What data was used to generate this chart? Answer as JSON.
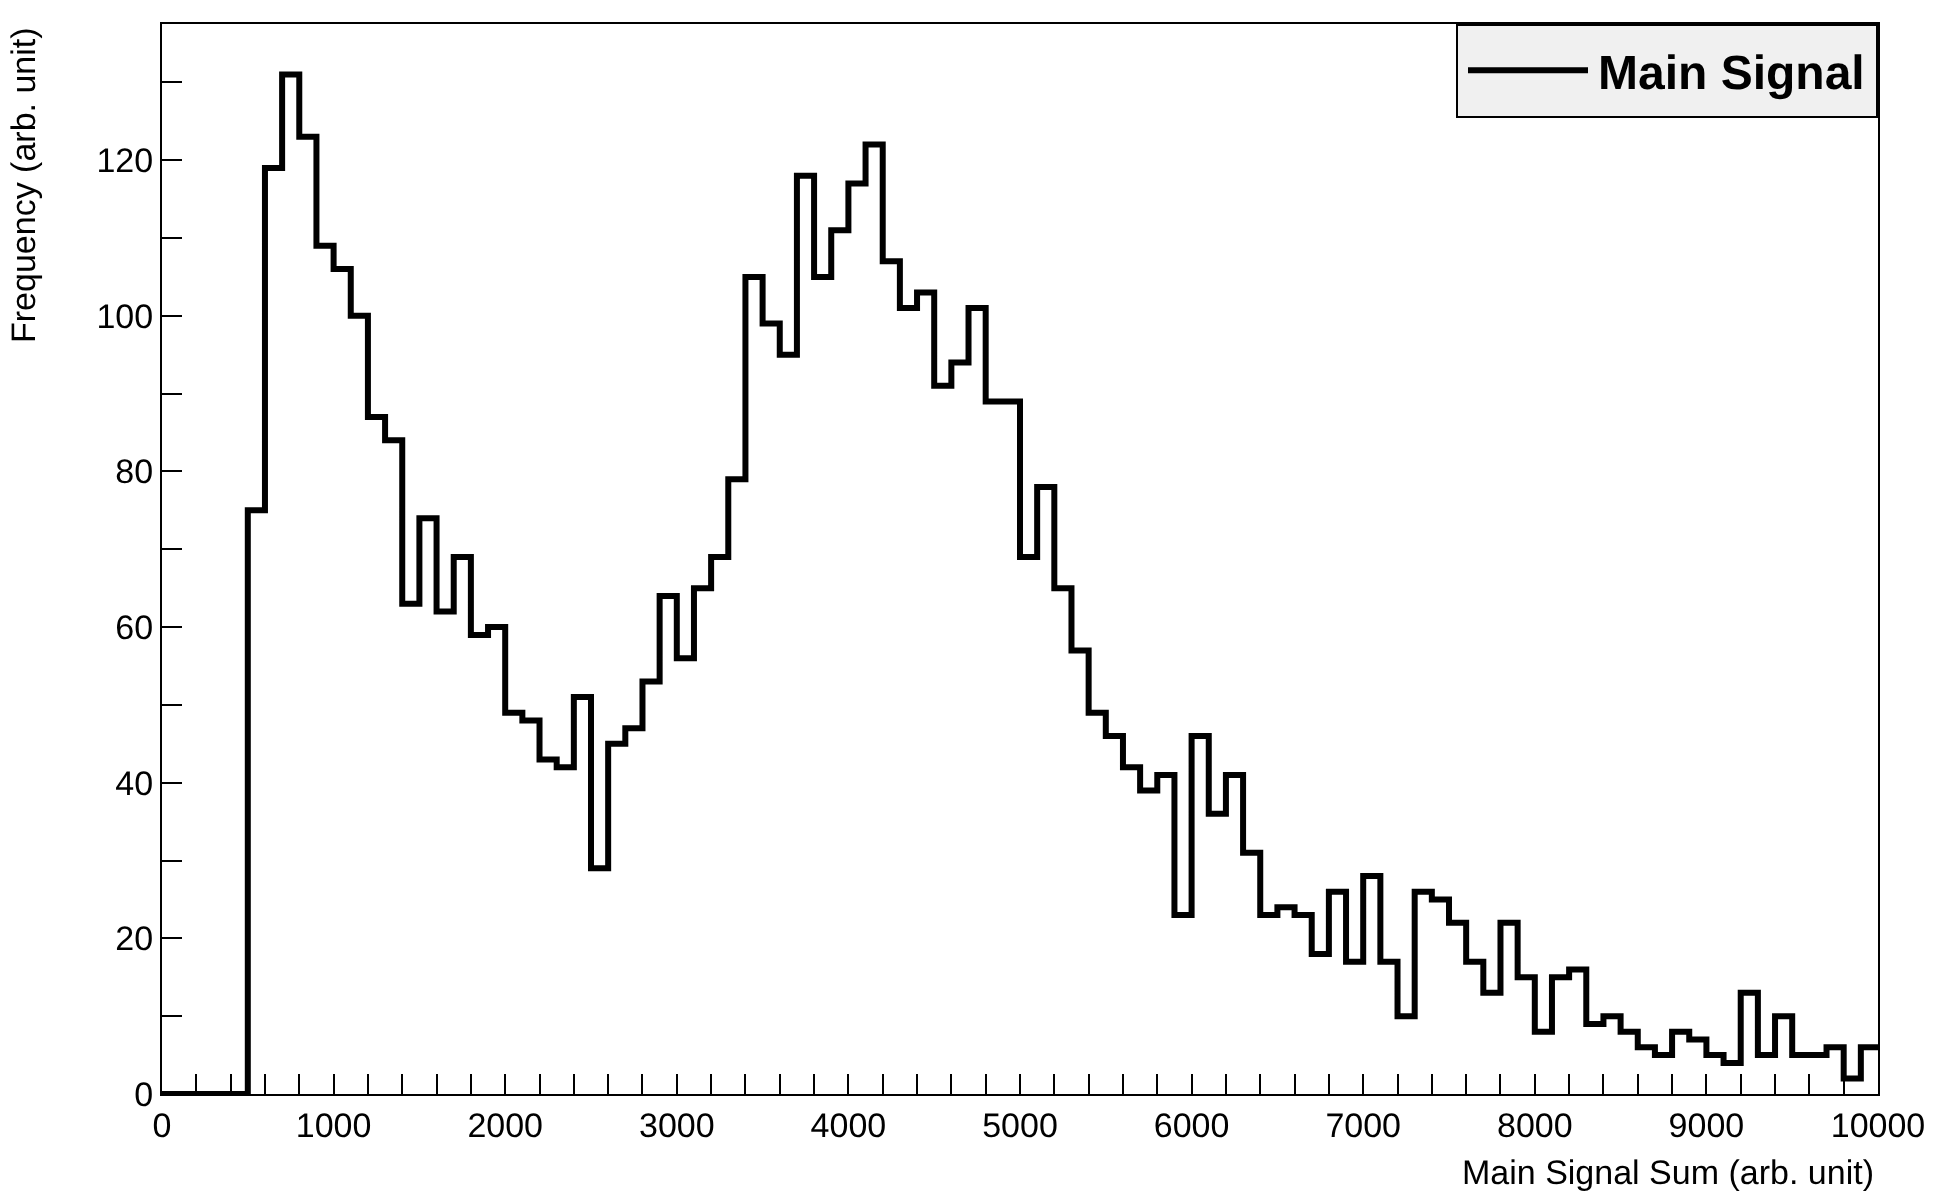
{
  "chart_data": {
    "type": "histogram",
    "xlabel": "Main Signal Sum (arb. unit)",
    "ylabel": "Frequency (arb. unit)",
    "series": [
      {
        "name": "Main Signal",
        "color": "#000000",
        "values": [
          0,
          0,
          0,
          0,
          0,
          75,
          119,
          131,
          123,
          109,
          106,
          100,
          87,
          84,
          63,
          74,
          62,
          69,
          59,
          60,
          49,
          48,
          43,
          42,
          51,
          29,
          45,
          47,
          53,
          64,
          56,
          65,
          69,
          79,
          105,
          99,
          95,
          118,
          105,
          111,
          117,
          122,
          107,
          101,
          103,
          91,
          94,
          101,
          89,
          89,
          69,
          78,
          65,
          57,
          49,
          46,
          42,
          39,
          41,
          23,
          46,
          36,
          41,
          31,
          23,
          24,
          23,
          18,
          26,
          17,
          28,
          17,
          10,
          26,
          25,
          22,
          17,
          13,
          22,
          15,
          8,
          15,
          16,
          9,
          10,
          8,
          6,
          5,
          8,
          7,
          5,
          4,
          13,
          5,
          10,
          5,
          5,
          6,
          2,
          6
        ]
      }
    ],
    "bins": [
      0,
      100,
      200,
      300,
      400,
      500,
      600,
      700,
      800,
      900,
      1000,
      1100,
      1200,
      1300,
      1400,
      1500,
      1600,
      1700,
      1800,
      1900,
      2000,
      2100,
      2200,
      2300,
      2400,
      2500,
      2600,
      2700,
      2800,
      2900,
      3000,
      3100,
      3200,
      3300,
      3400,
      3500,
      3600,
      3700,
      3800,
      3900,
      4000,
      4100,
      4200,
      4300,
      4400,
      4500,
      4600,
      4700,
      4800,
      4900,
      5000,
      5100,
      5200,
      5300,
      5400,
      5500,
      5600,
      5700,
      5800,
      5900,
      6000,
      6100,
      6200,
      6300,
      6400,
      6500,
      6600,
      6700,
      6800,
      6900,
      7000,
      7100,
      7200,
      7300,
      7400,
      7500,
      7600,
      7700,
      7800,
      7900,
      8000,
      8100,
      8200,
      8300,
      8400,
      8500,
      8600,
      8700,
      8800,
      8900,
      9000,
      9100,
      9200,
      9300,
      9400,
      9500,
      9600,
      9700,
      9800,
      9900,
      10000
    ],
    "xlim": [
      0,
      10000
    ],
    "ylim": [
      0,
      137.5
    ],
    "xticks": [
      0,
      {
        "value": 200,
        "label": null
      },
      {
        "value": 400,
        "label": null
      },
      {
        "value": 600,
        "label": null
      },
      {
        "value": 800,
        "label": null
      },
      1000,
      {
        "value": 1200,
        "label": null
      },
      {
        "value": 1400,
        "label": null
      },
      {
        "value": 1600,
        "label": null
      },
      {
        "value": 1800,
        "label": null
      },
      2000,
      {
        "value": 2200,
        "label": null
      },
      {
        "value": 2400,
        "label": null
      },
      {
        "value": 2600,
        "label": null
      },
      {
        "value": 2800,
        "label": null
      },
      3000,
      {
        "value": 3200,
        "label": null
      },
      {
        "value": 3400,
        "label": null
      },
      {
        "value": 3600,
        "label": null
      },
      {
        "value": 3800,
        "label": null
      },
      4000,
      {
        "value": 4200,
        "label": null
      },
      {
        "value": 4400,
        "label": null
      },
      {
        "value": 4600,
        "label": null
      },
      {
        "value": 4800,
        "label": null
      },
      5000,
      {
        "value": 5200,
        "label": null
      },
      {
        "value": 5400,
        "label": null
      },
      {
        "value": 5600,
        "label": null
      },
      {
        "value": 5800,
        "label": null
      },
      6000,
      {
        "value": 6200,
        "label": null
      },
      {
        "value": 6400,
        "label": null
      },
      {
        "value": 6600,
        "label": null
      },
      {
        "value": 6800,
        "label": null
      },
      7000,
      {
        "value": 7200,
        "label": null
      },
      {
        "value": 7400,
        "label": null
      },
      {
        "value": 7600,
        "label": null
      },
      {
        "value": 7800,
        "label": null
      },
      8000,
      {
        "value": 8200,
        "label": null
      },
      {
        "value": 8400,
        "label": null
      },
      {
        "value": 8600,
        "label": null
      },
      {
        "value": 8800,
        "label": null
      },
      9000,
      {
        "value": 9200,
        "label": null
      },
      {
        "value": 9400,
        "label": null
      },
      {
        "value": 9600,
        "label": null
      },
      {
        "value": 9800,
        "label": null
      },
      10000
    ],
    "yticks": [
      0,
      {
        "value": 10,
        "label": null
      },
      20,
      {
        "value": 30,
        "label": null
      },
      40,
      {
        "value": 50,
        "label": null
      },
      60,
      {
        "value": 70,
        "label": null
      },
      80,
      {
        "value": 90,
        "label": null
      },
      100,
      {
        "value": 110,
        "label": null
      },
      120,
      {
        "value": 130,
        "label": null
      }
    ],
    "grid": false,
    "legend": "top right",
    "line_style": "solid",
    "marker": "none"
  }
}
